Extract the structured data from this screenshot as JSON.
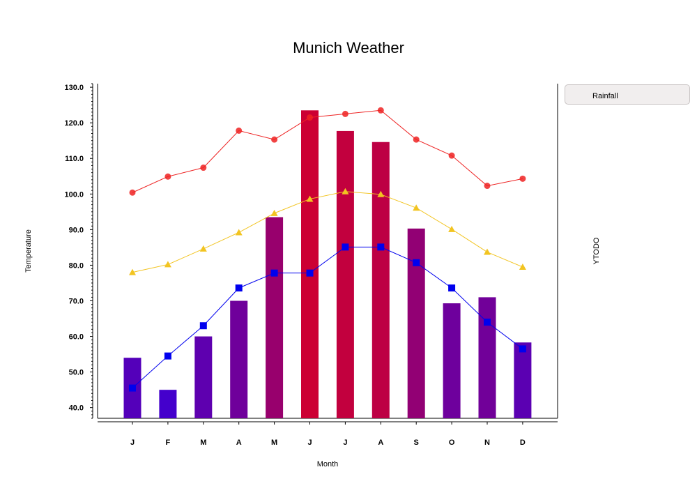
{
  "chart_data": {
    "type": "bar",
    "title": "Munich Weather",
    "xlabel": "Month",
    "ylabel": "Temperature",
    "y2label": "YTODO",
    "categories": [
      "J",
      "F",
      "M",
      "A",
      "M",
      "J",
      "J",
      "A",
      "S",
      "O",
      "N",
      "D"
    ],
    "ylim": [
      37,
      131
    ],
    "yticks": [
      40,
      50,
      60,
      70,
      80,
      90,
      100,
      110,
      120,
      130
    ],
    "ytick_labels": [
      "40.0",
      "50.0",
      "60.0",
      "70.0",
      "80.0",
      "90.0",
      "100.0",
      "110.0",
      "120.0",
      "130.0"
    ],
    "bar_series": {
      "name": "Rainfall",
      "values": [
        54,
        45,
        60,
        70,
        93.5,
        123.5,
        117.7,
        114.6,
        90.3,
        69.3,
        71,
        58.3
      ],
      "color_low": "#4400cc",
      "color_high": "#cc0033"
    },
    "series": [
      {
        "color": "#ee2222",
        "marker": "circle",
        "values": [
          100.4,
          104.9,
          107.4,
          117.8,
          115.3,
          121.5,
          122.5,
          123.5,
          115.3,
          110.8,
          102.3,
          104.3
        ]
      },
      {
        "color": "#f2c421",
        "marker": "triangle",
        "values": [
          78,
          80.2,
          84.6,
          89.2,
          94.6,
          98.6,
          100.7,
          99.9,
          96.1,
          90.1,
          83.7,
          79.5
        ]
      },
      {
        "color": "#0000ee",
        "marker": "square",
        "values": [
          45.5,
          54.5,
          63,
          73.6,
          77.8,
          77.8,
          85.1,
          85.1,
          80.7,
          73.6,
          64,
          56.5
        ]
      }
    ],
    "legend": {
      "position": "right",
      "entries": [
        "Rainfall"
      ]
    }
  }
}
